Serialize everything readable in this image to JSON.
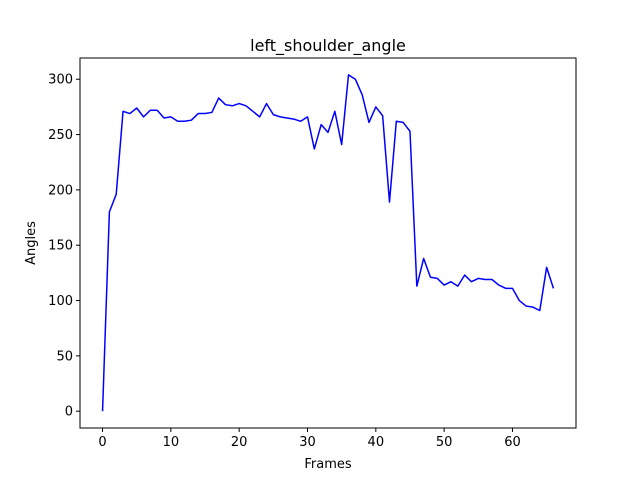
{
  "chart_data": {
    "type": "line",
    "title": "left_shoulder_angle",
    "xlabel": "Frames",
    "ylabel": "Angles",
    "xlim": [
      -3.3,
      69.3
    ],
    "ylim": [
      -15.2,
      319.2
    ],
    "xticks": [
      0,
      10,
      20,
      30,
      40,
      50,
      60
    ],
    "yticks": [
      0,
      50,
      100,
      150,
      200,
      250,
      300
    ],
    "grid": false,
    "legend": "none",
    "series": [
      {
        "color": "#0000ff",
        "x": [
          0,
          1,
          2,
          3,
          4,
          5,
          6,
          7,
          8,
          9,
          10,
          11,
          12,
          13,
          14,
          15,
          16,
          17,
          18,
          19,
          20,
          21,
          22,
          23,
          24,
          25,
          26,
          27,
          28,
          29,
          30,
          31,
          32,
          33,
          34,
          35,
          36,
          37,
          38,
          39,
          40,
          41,
          42,
          43,
          44,
          45,
          46,
          47,
          48,
          49,
          50,
          51,
          52,
          53,
          54,
          55,
          56,
          57,
          58,
          59,
          60,
          61,
          62,
          63,
          64,
          65,
          66
        ],
        "y": [
          0,
          180,
          196,
          271,
          269,
          274,
          266,
          272,
          272,
          265,
          266,
          262,
          262,
          263,
          269,
          269,
          270,
          283,
          277,
          276,
          278,
          276,
          271,
          266,
          278,
          268,
          266,
          265,
          264,
          262,
          266,
          237,
          259,
          252,
          271,
          241,
          304,
          300,
          286,
          261,
          275,
          267,
          189,
          262,
          261,
          253,
          113,
          138,
          121,
          120,
          114,
          117,
          113,
          123,
          117,
          120,
          119,
          119,
          114,
          111,
          111,
          100,
          95,
          94,
          91,
          130,
          111
        ]
      }
    ]
  }
}
